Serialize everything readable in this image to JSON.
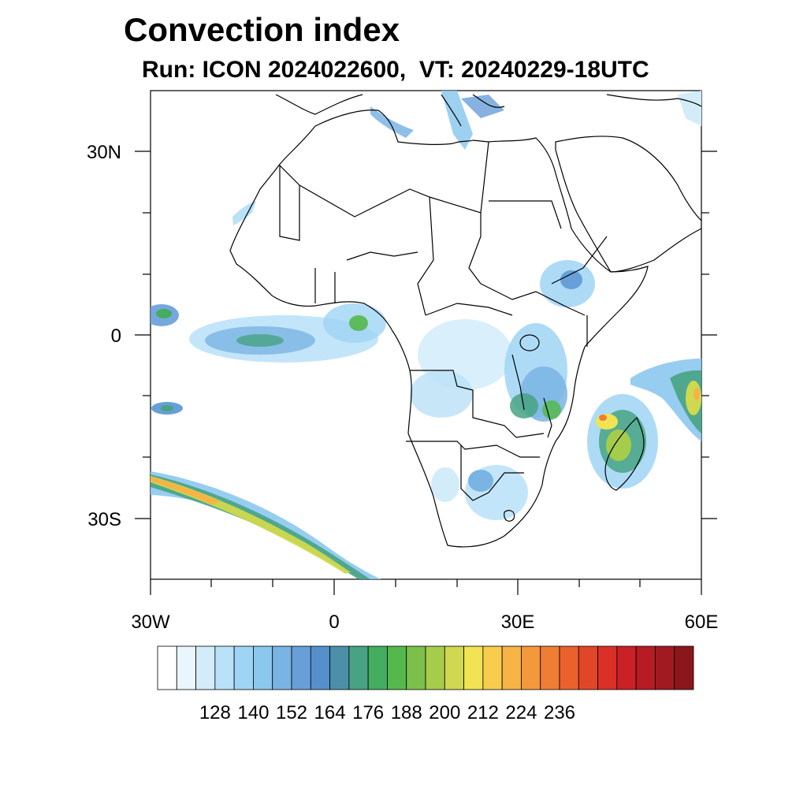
{
  "title": "Convection index",
  "subtitle": "Run: ICON 2024022600,  VT: 20240229-18UTC",
  "axes": {
    "lat_ticks": [
      {
        "value": 30,
        "label": "30N"
      },
      {
        "value": 0,
        "label": "0"
      },
      {
        "value": -30,
        "label": "30S"
      }
    ],
    "lon_ticks": [
      {
        "value": -30,
        "label": "30W"
      },
      {
        "value": 0,
        "label": "0"
      },
      {
        "value": 30,
        "label": "30E"
      },
      {
        "value": 60,
        "label": "60E"
      }
    ],
    "lon_range": [
      -30,
      60
    ],
    "lat_range": [
      -40,
      40
    ]
  },
  "colorbar": {
    "colors": [
      "#ffffff",
      "#eaf6fd",
      "#d2ecfa",
      "#b9e1f8",
      "#9fd5f4",
      "#8cc8ee",
      "#7ab4e4",
      "#679fd8",
      "#5690cc",
      "#4c8fa8",
      "#47a383",
      "#44ad5f",
      "#55b84c",
      "#7ac04a",
      "#a6cc4c",
      "#cfd84e",
      "#f0e354",
      "#f8cd4f",
      "#f6b346",
      "#f4983c",
      "#f07d34",
      "#ea612d",
      "#e24629",
      "#d93028",
      "#ca2128",
      "#b71c25",
      "#a11a21",
      "#8b171c"
    ],
    "labels": [
      "128",
      "140",
      "152",
      "164",
      "176",
      "188",
      "200",
      "212",
      "224",
      "236"
    ]
  },
  "map_features": {
    "coastlines": "Africa, Arabian Peninsula, Madagascar, southern Europe",
    "color_theme": [
      "#7ab4e4",
      "#47a383",
      "#f0e354",
      "#f07d34"
    ]
  }
}
